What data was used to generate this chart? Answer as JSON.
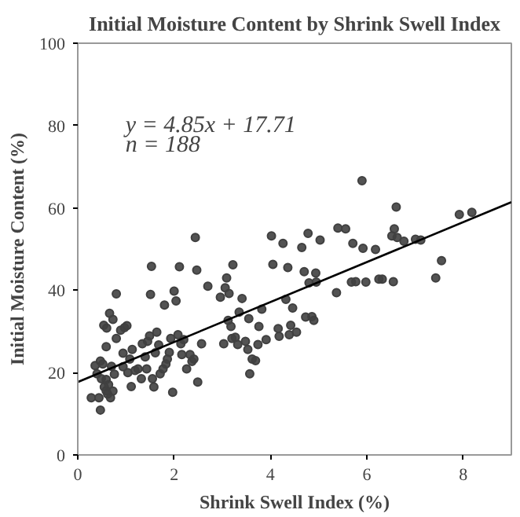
{
  "chart_data": {
    "type": "scatter",
    "title": "Initial Moisture Content by Shrink Swell Index",
    "xlabel": "Shrink Swell Index (%)",
    "ylabel": "Initial Moisture Content (%)",
    "xlim": [
      0,
      9
    ],
    "ylim": [
      0,
      100
    ],
    "xticks": [
      0,
      2,
      4,
      6,
      8
    ],
    "yticks": [
      0,
      20,
      40,
      60,
      80,
      100
    ],
    "grid": false,
    "marker": "circle",
    "annotations": [
      "y = 4.85x + 17.71",
      "n = 188"
    ],
    "series": [
      {
        "color": "#404040",
        "x": [
          0.28,
          0.44,
          0.47,
          0.36,
          0.4,
          0.47,
          0.52,
          0.49,
          0.55,
          0.59,
          0.62,
          0.68,
          0.73,
          0.64,
          0.59,
          0.54,
          0.6,
          0.66,
          0.73,
          0.59,
          0.7,
          0.76,
          0.8,
          0.8,
          0.89,
          0.97,
          1.02,
          0.94,
          0.94,
          1.04,
          1.08,
          1.11,
          1.13,
          1.19,
          1.25,
          1.32,
          1.34,
          1.4,
          1.43,
          1.45,
          1.49,
          1.51,
          1.53,
          1.55,
          1.58,
          1.61,
          1.64,
          1.68,
          1.71,
          1.77,
          1.8,
          1.83,
          1.86,
          1.9,
          1.93,
          1.97,
          2.0,
          2.04,
          2.08,
          2.11,
          2.14,
          2.16,
          2.2,
          2.26,
          2.33,
          2.37,
          2.41,
          2.44,
          2.47,
          2.49,
          2.57,
          2.7,
          2.96,
          3.03,
          3.06,
          3.09,
          3.12,
          3.14,
          3.18,
          3.2,
          3.22,
          3.27,
          3.32,
          3.35,
          3.41,
          3.48,
          3.53,
          3.55,
          3.57,
          3.62,
          3.69,
          3.74,
          3.76,
          3.82,
          3.91,
          4.02,
          4.05,
          4.16,
          4.18,
          4.26,
          4.32,
          4.36,
          4.39,
          4.42,
          4.46,
          4.54,
          4.65,
          4.7,
          4.73,
          4.78,
          4.8,
          4.86,
          4.9,
          4.94,
          4.95,
          5.03,
          5.37,
          5.4,
          5.56,
          5.71,
          5.68,
          5.77,
          5.9,
          5.92,
          5.98,
          6.18,
          6.25,
          6.32,
          6.55,
          6.52,
          6.57,
          6.61,
          6.63,
          6.77,
          7.01,
          7.12,
          7.43,
          7.55,
          7.92,
          8.18
        ],
        "values": [
          13.9,
          13.9,
          10.9,
          21.7,
          19.7,
          22.8,
          22.1,
          18.5,
          16.5,
          15.6,
          14.8,
          13.9,
          15.5,
          17.1,
          18.3,
          31.5,
          30.8,
          34.4,
          32.9,
          26.3,
          21.5,
          19.6,
          39.1,
          28.3,
          30.3,
          30.9,
          31.4,
          24.7,
          21.4,
          20.0,
          23.3,
          16.6,
          25.6,
          20.5,
          20.9,
          18.5,
          27.0,
          23.8,
          20.9,
          27.6,
          28.9,
          39.0,
          45.8,
          18.5,
          16.5,
          24.8,
          29.8,
          26.7,
          19.7,
          20.9,
          36.4,
          22.1,
          23.3,
          24.9,
          28.3,
          15.2,
          39.8,
          37.4,
          29.2,
          45.7,
          27.0,
          24.4,
          28.0,
          20.9,
          24.4,
          22.7,
          23.3,
          52.8,
          44.9,
          17.7,
          27.0,
          41.0,
          38.3,
          27.0,
          40.6,
          43.0,
          32.7,
          39.2,
          31.2,
          28.3,
          46.2,
          28.6,
          26.8,
          34.7,
          38.0,
          27.6,
          25.6,
          33.1,
          19.7,
          23.3,
          22.9,
          26.8,
          31.2,
          35.4,
          28.0,
          53.2,
          46.3,
          30.7,
          28.8,
          51.4,
          37.8,
          45.5,
          29.2,
          31.5,
          35.7,
          29.8,
          50.4,
          44.5,
          33.5,
          53.8,
          41.8,
          33.6,
          32.7,
          44.2,
          42.0,
          52.2,
          39.4,
          55.1,
          54.9,
          51.4,
          42.0,
          42.1,
          66.6,
          50.2,
          42.0,
          49.9,
          42.7,
          42.7,
          42.1,
          53.2,
          54.9,
          60.2,
          52.8,
          51.9,
          52.4,
          52.2,
          43.0,
          47.2,
          58.4,
          58.9
        ]
      },
      {
        "type": "line",
        "color": "#000000",
        "line_style": "solid",
        "marker": "none",
        "x": [
          0,
          9
        ],
        "values": [
          17.7,
          61.4
        ]
      }
    ]
  }
}
